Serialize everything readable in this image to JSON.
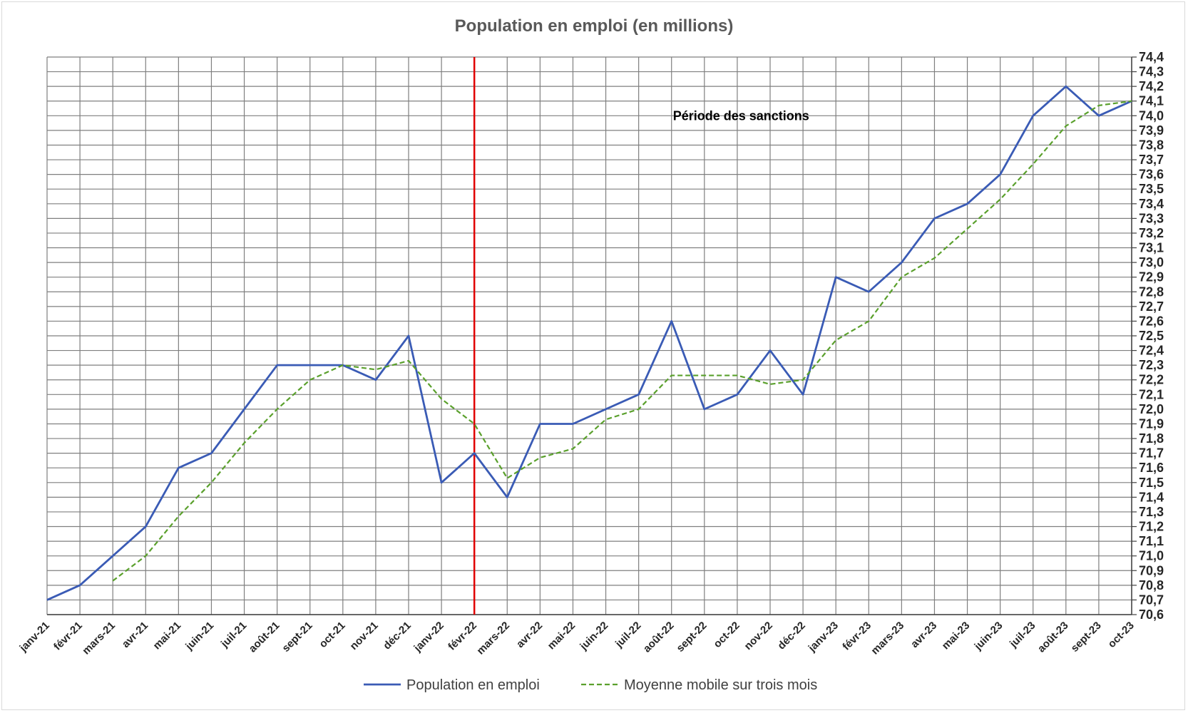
{
  "chart_data": {
    "type": "line",
    "title": "Population en emploi (en millions)",
    "xlabel": "",
    "ylabel": "",
    "ylim": [
      70.6,
      74.4
    ],
    "ytick_step": 0.1,
    "grid": true,
    "legend_position": "bottom",
    "categories": [
      "janv-21",
      "févr-21",
      "mars-21",
      "avr-21",
      "mai-21",
      "juin-21",
      "juil-21",
      "août-21",
      "sept-21",
      "oct-21",
      "nov-21",
      "déc-21",
      "janv-22",
      "févr-22",
      "mars-22",
      "avr-22",
      "mai-22",
      "juin-22",
      "juil-22",
      "août-22",
      "sept-22",
      "oct-22",
      "nov-22",
      "déc-22",
      "janv-23",
      "févr-23",
      "mars-23",
      "avr-23",
      "mai-23",
      "juin-23",
      "juil-23",
      "août-23",
      "sept-23",
      "oct-23"
    ],
    "series": [
      {
        "name": "Population en emploi",
        "color": "#3a5bb5",
        "style": "solid",
        "values": [
          70.7,
          70.8,
          71.0,
          71.2,
          71.6,
          71.7,
          72.0,
          72.3,
          72.3,
          72.3,
          72.2,
          72.5,
          71.5,
          71.7,
          71.4,
          71.9,
          71.9,
          72.0,
          72.1,
          72.6,
          72.0,
          72.1,
          72.4,
          72.1,
          72.9,
          72.8,
          73.0,
          73.3,
          73.4,
          73.6,
          74.0,
          74.2,
          74.0,
          74.1
        ]
      },
      {
        "name": "Moyenne mobile sur trois mois",
        "color": "#5aa02c",
        "style": "dashed",
        "values": [
          null,
          null,
          70.83,
          71.0,
          71.27,
          71.5,
          71.77,
          72.0,
          72.2,
          72.3,
          72.27,
          72.33,
          72.07,
          71.9,
          71.53,
          71.67,
          71.73,
          71.93,
          72.0,
          72.23,
          72.23,
          72.23,
          72.17,
          72.2,
          72.47,
          72.6,
          72.9,
          73.03,
          73.23,
          73.43,
          73.67,
          73.93,
          74.07,
          74.1
        ]
      }
    ],
    "annotations": {
      "vline_category": "févr-22",
      "vline_color": "#e00000",
      "text": "Période des sanctions",
      "text_anchor_category": "août-22",
      "text_anchor_value": 73.97
    }
  }
}
